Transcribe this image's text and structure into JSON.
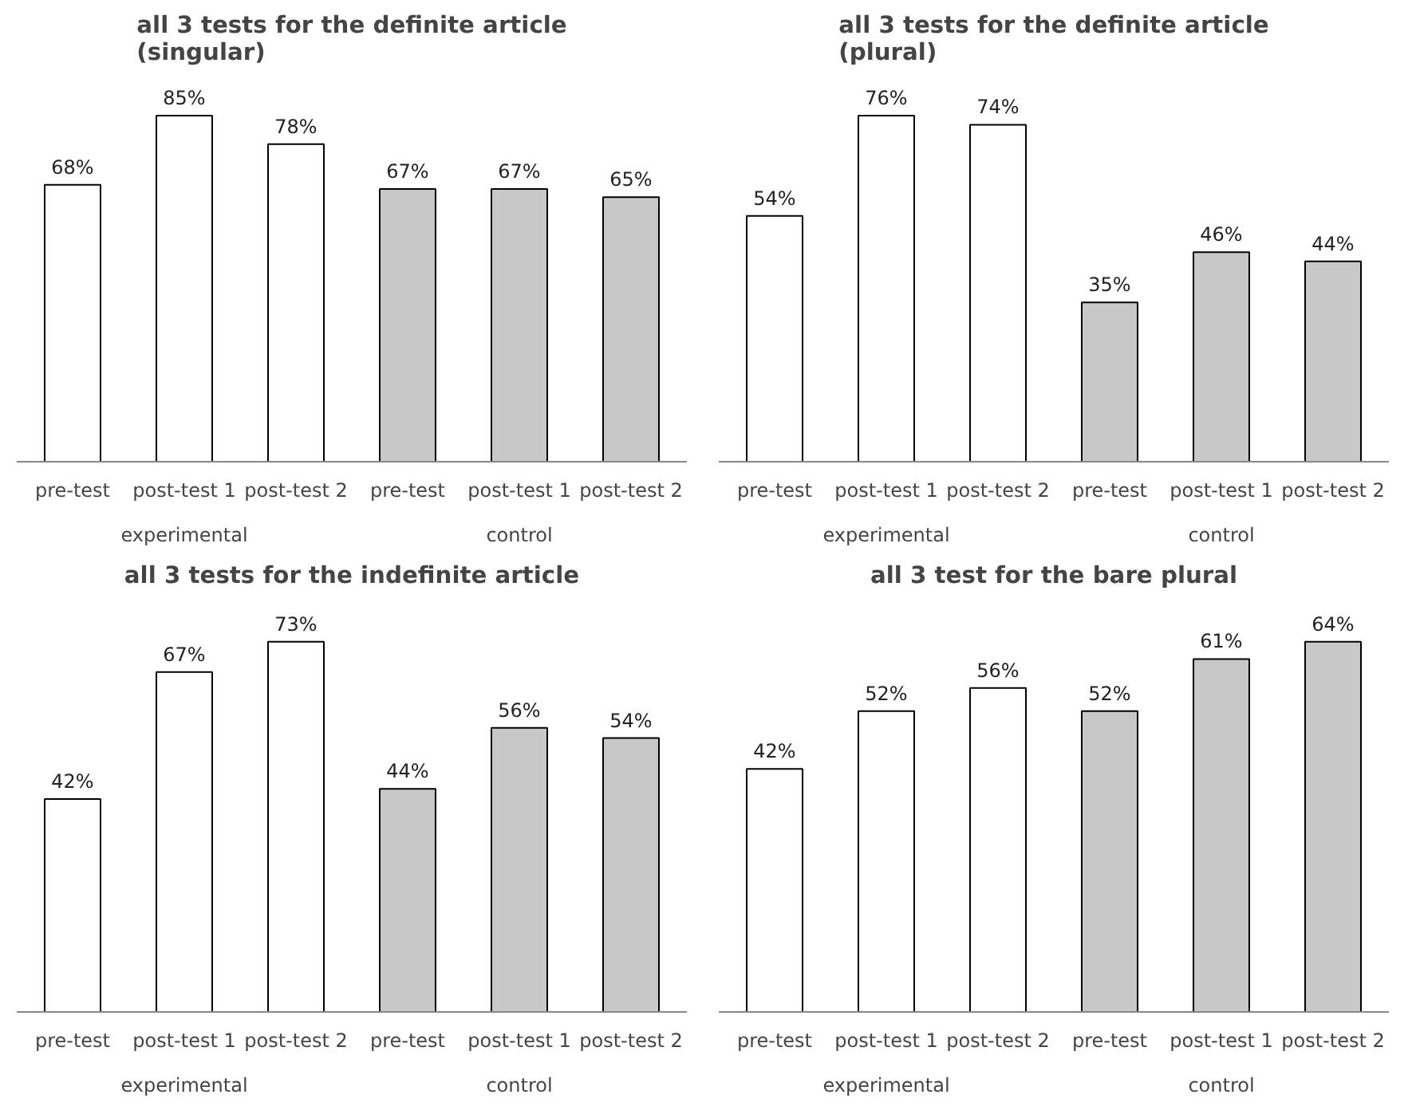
{
  "chart_data": [
    {
      "type": "bar",
      "title": "all 3 tests for the definite article\n(singular)",
      "categories": [
        "pre-test",
        "post-test 1",
        "post-test 2",
        "pre-test",
        "post-test 1",
        "post-test 2"
      ],
      "values": [
        68,
        85,
        78,
        67,
        67,
        65
      ],
      "colors": [
        "#ffffff",
        "#ffffff",
        "#ffffff",
        "#c8c8c8",
        "#c8c8c8",
        "#c8c8c8"
      ],
      "value_labels": [
        "68%",
        "85%",
        "78%",
        "67%",
        "67%",
        "65%"
      ],
      "annotations": [
        "experimental",
        "control"
      ],
      "grid": false
    },
    {
      "type": "bar",
      "title": "all 3 tests for the definite article\n(plural)",
      "categories": [
        "pre-test",
        "post-test 1",
        "post-test 2",
        "pre-test",
        "post-test 1",
        "post-test 2"
      ],
      "values": [
        54,
        76,
        74,
        35,
        46,
        44
      ],
      "colors": [
        "#ffffff",
        "#ffffff",
        "#ffffff",
        "#c8c8c8",
        "#c8c8c8",
        "#c8c8c8"
      ],
      "value_labels": [
        "54%",
        "76%",
        "74%",
        "35%",
        "46%",
        "44%"
      ],
      "annotations": [
        "experimental",
        "control"
      ],
      "grid": false
    },
    {
      "type": "bar",
      "title": "all 3 tests for the indefinite article",
      "categories": [
        "pre-test",
        "post-test 1",
        "post-test 2",
        "pre-test",
        "post-test 1",
        "post-test 2"
      ],
      "values": [
        42,
        67,
        73,
        44,
        56,
        54
      ],
      "colors": [
        "#ffffff",
        "#ffffff",
        "#ffffff",
        "#c8c8c8",
        "#c8c8c8",
        "#c8c8c8"
      ],
      "value_labels": [
        "42%",
        "67%",
        "73%",
        "44%",
        "56%",
        "54%"
      ],
      "annotations": [
        "experimental",
        "control"
      ],
      "grid": false
    },
    {
      "type": "bar",
      "title": "all 3 test for the bare plural",
      "categories": [
        "pre-test",
        "post-test 1",
        "post-test 2",
        "pre-test",
        "post-test 1",
        "post-test 2"
      ],
      "values": [
        42,
        52,
        56,
        52,
        61,
        64
      ],
      "colors": [
        "#ffffff",
        "#ffffff",
        "#ffffff",
        "#c8c8c8",
        "#c8c8c8",
        "#c8c8c8"
      ],
      "value_labels": [
        "42%",
        "52%",
        "56%",
        "52%",
        "61%",
        "64%"
      ],
      "annotations": [
        "experimental",
        "control"
      ],
      "grid": false
    }
  ]
}
